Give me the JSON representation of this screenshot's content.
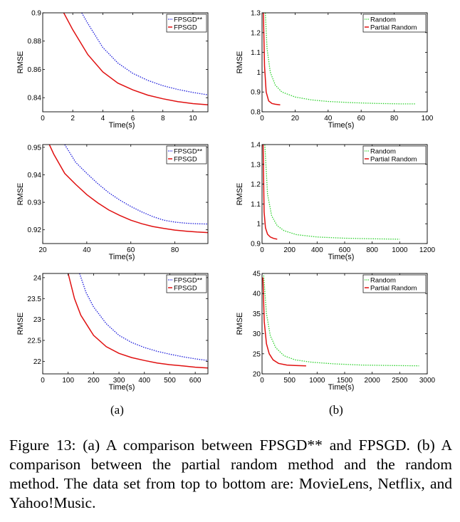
{
  "colors": {
    "blue": "#1a1adb",
    "red": "#e01010",
    "green": "#2fd12f",
    "axis": "#000000"
  },
  "subfigure_labels": {
    "a": "(a)",
    "b": "(b)"
  },
  "caption": "Figure 13:  (a) A comparison between FPSGD** and FPSGD. (b) A comparison between the partial random method and the random method. The data set from top to bottom are: MovieLens, Netflix, and Yahoo!Music.",
  "chart_data": [
    {
      "id": "movielens-fpsgd",
      "type": "line",
      "xlabel": "Time(s)",
      "ylabel": "RMSE",
      "xlim": [
        0,
        11
      ],
      "ylim": [
        0.83,
        0.9
      ],
      "xticks": [
        0,
        2,
        4,
        6,
        8,
        10
      ],
      "yticks": [
        0.84,
        0.86,
        0.88,
        0.9
      ],
      "ytick_labels": [
        "0.84",
        "0.86",
        "0.88",
        "0.9"
      ],
      "legend": "top-right",
      "series": [
        {
          "name": "FPSGD**",
          "color": "#1a1adb",
          "style": "dotted",
          "x": [
            2.6,
            3,
            4,
            5,
            6,
            7,
            8,
            9,
            10,
            11
          ],
          "y": [
            0.9,
            0.8925,
            0.8755,
            0.8645,
            0.8572,
            0.8522,
            0.8485,
            0.8458,
            0.8437,
            0.842
          ]
        },
        {
          "name": "FPSGD",
          "color": "#e01010",
          "style": "solid",
          "x": [
            1.4,
            2,
            3,
            4,
            5,
            6,
            7,
            8,
            9,
            10,
            11
          ],
          "y": [
            0.9,
            0.888,
            0.8705,
            0.8582,
            0.8503,
            0.8455,
            0.8418,
            0.8392,
            0.8372,
            0.8358,
            0.835
          ]
        }
      ]
    },
    {
      "id": "movielens-random",
      "type": "line",
      "xlabel": "Time(s)",
      "ylabel": "RMSE",
      "xlim": [
        0,
        100
      ],
      "ylim": [
        0.8,
        1.3
      ],
      "xticks": [
        0,
        20,
        40,
        60,
        80,
        100
      ],
      "yticks": [
        0.8,
        0.9,
        1,
        1.1,
        1.2,
        1.3
      ],
      "ytick_labels": [
        "0.8",
        "0.9",
        "1",
        "1.1",
        "1.2",
        "1.3"
      ],
      "legend": "top-right",
      "series": [
        {
          "name": "Random",
          "color": "#2fd12f",
          "style": "dotted",
          "x": [
            2,
            3,
            5,
            8,
            12,
            20,
            30,
            40,
            55,
            70,
            85,
            93
          ],
          "y": [
            1.3,
            1.12,
            1.0,
            0.935,
            0.9,
            0.875,
            0.86,
            0.852,
            0.846,
            0.842,
            0.84,
            0.84
          ]
        },
        {
          "name": "Partial Random",
          "color": "#e01010",
          "style": "solid",
          "x": [
            0.8,
            1.5,
            2.5,
            4,
            6,
            8,
            11
          ],
          "y": [
            1.3,
            1.03,
            0.9,
            0.855,
            0.842,
            0.838,
            0.835
          ]
        }
      ]
    },
    {
      "id": "netflix-fpsgd",
      "type": "line",
      "xlabel": "Time(s)",
      "ylabel": "RMSE",
      "xlim": [
        20,
        95
      ],
      "ylim": [
        0.915,
        0.951
      ],
      "xticks": [
        20,
        40,
        60,
        80
      ],
      "yticks": [
        0.92,
        0.93,
        0.94,
        0.95
      ],
      "ytick_labels": [
        "0.92",
        "0.93",
        "0.94",
        "0.95"
      ],
      "legend": "top-right",
      "series": [
        {
          "name": "FPSGD**",
          "color": "#1a1adb",
          "style": "dotted",
          "x": [
            30,
            35,
            40,
            45,
            50,
            55,
            60,
            65,
            70,
            75,
            80,
            85,
            90,
            95
          ],
          "y": [
            0.951,
            0.9445,
            0.9405,
            0.9368,
            0.9335,
            0.9308,
            0.9285,
            0.9265,
            0.9248,
            0.9235,
            0.9228,
            0.9224,
            0.9222,
            0.9221
          ]
        },
        {
          "name": "FPSGD",
          "color": "#e01010",
          "style": "solid",
          "x": [
            23,
            25,
            30,
            35,
            40,
            45,
            50,
            55,
            60,
            65,
            70,
            75,
            80,
            85,
            90,
            95
          ],
          "y": [
            0.951,
            0.9475,
            0.9405,
            0.9365,
            0.9328,
            0.9298,
            0.9272,
            0.9252,
            0.9235,
            0.9222,
            0.9212,
            0.9205,
            0.9199,
            0.9195,
            0.9192,
            0.919
          ]
        }
      ]
    },
    {
      "id": "netflix-random",
      "type": "line",
      "xlabel": "Time(s)",
      "ylabel": "RMSE",
      "xlim": [
        0,
        1200
      ],
      "ylim": [
        0.9,
        1.4
      ],
      "xticks": [
        0,
        200,
        400,
        600,
        800,
        1000,
        1200
      ],
      "yticks": [
        0.9,
        1,
        1.1,
        1.2,
        1.3,
        1.4
      ],
      "ytick_labels": [
        "0.9",
        "1",
        "1.1",
        "1.2",
        "1.3",
        "1.4"
      ],
      "legend": "top-right",
      "series": [
        {
          "name": "Random",
          "color": "#2fd12f",
          "style": "dotted",
          "x": [
            20,
            40,
            70,
            110,
            160,
            250,
            400,
            600,
            800,
            1000
          ],
          "y": [
            1.4,
            1.15,
            1.04,
            0.99,
            0.965,
            0.945,
            0.933,
            0.927,
            0.924,
            0.922
          ]
        },
        {
          "name": "Partial Random",
          "color": "#e01010",
          "style": "solid",
          "x": [
            8,
            15,
            25,
            40,
            60,
            85,
            110
          ],
          "y": [
            1.4,
            1.06,
            0.98,
            0.947,
            0.933,
            0.926,
            0.922
          ]
        }
      ]
    },
    {
      "id": "yahoomusic-fpsgd",
      "type": "line",
      "xlabel": "Time(s)",
      "ylabel": "RMSE",
      "xlim": [
        0,
        650
      ],
      "ylim": [
        21.7,
        24.1
      ],
      "xticks": [
        0,
        100,
        200,
        300,
        400,
        500,
        600
      ],
      "yticks": [
        22,
        22.5,
        23,
        23.5,
        24
      ],
      "ytick_labels": [
        "22",
        "22.5",
        "23",
        "23.5",
        "24"
      ],
      "legend": "top-right",
      "series": [
        {
          "name": "FPSGD**",
          "color": "#1a1adb",
          "style": "dotted",
          "x": [
            145,
            170,
            200,
            250,
            300,
            350,
            400,
            450,
            500,
            550,
            600,
            650
          ],
          "y": [
            24.1,
            23.65,
            23.3,
            22.9,
            22.62,
            22.45,
            22.33,
            22.24,
            22.17,
            22.11,
            22.06,
            22.02
          ]
        },
        {
          "name": "FPSGD",
          "color": "#e01010",
          "style": "solid",
          "x": [
            100,
            125,
            150,
            200,
            250,
            300,
            350,
            400,
            450,
            500,
            550,
            600,
            650
          ],
          "y": [
            24.1,
            23.5,
            23.1,
            22.62,
            22.35,
            22.19,
            22.09,
            22.02,
            21.96,
            21.92,
            21.89,
            21.86,
            21.84
          ]
        }
      ]
    },
    {
      "id": "yahoomusic-random",
      "type": "line",
      "xlabel": "Time(s)",
      "ylabel": "RMSE",
      "xlim": [
        0,
        3000
      ],
      "ylim": [
        20,
        45
      ],
      "xticks": [
        0,
        500,
        1000,
        1500,
        2000,
        2500,
        3000
      ],
      "yticks": [
        20,
        25,
        30,
        35,
        40,
        45
      ],
      "ytick_labels": [
        "20",
        "25",
        "30",
        "35",
        "40",
        "45"
      ],
      "legend": "top-right",
      "series": [
        {
          "name": "Random",
          "color": "#2fd12f",
          "style": "dotted",
          "x": [
            30,
            80,
            150,
            250,
            400,
            600,
            900,
            1300,
            1800,
            2300,
            2850
          ],
          "y": [
            44.5,
            35,
            29.5,
            26.5,
            24.5,
            23.5,
            22.9,
            22.5,
            22.2,
            22.1,
            22.0
          ]
        },
        {
          "name": "Partial Random",
          "color": "#e01010",
          "style": "solid",
          "x": [
            15,
            40,
            80,
            130,
            200,
            300,
            450,
            600,
            800
          ],
          "y": [
            44,
            33,
            27.5,
            25,
            23.5,
            22.6,
            22.2,
            22.1,
            22.0
          ]
        }
      ]
    }
  ]
}
